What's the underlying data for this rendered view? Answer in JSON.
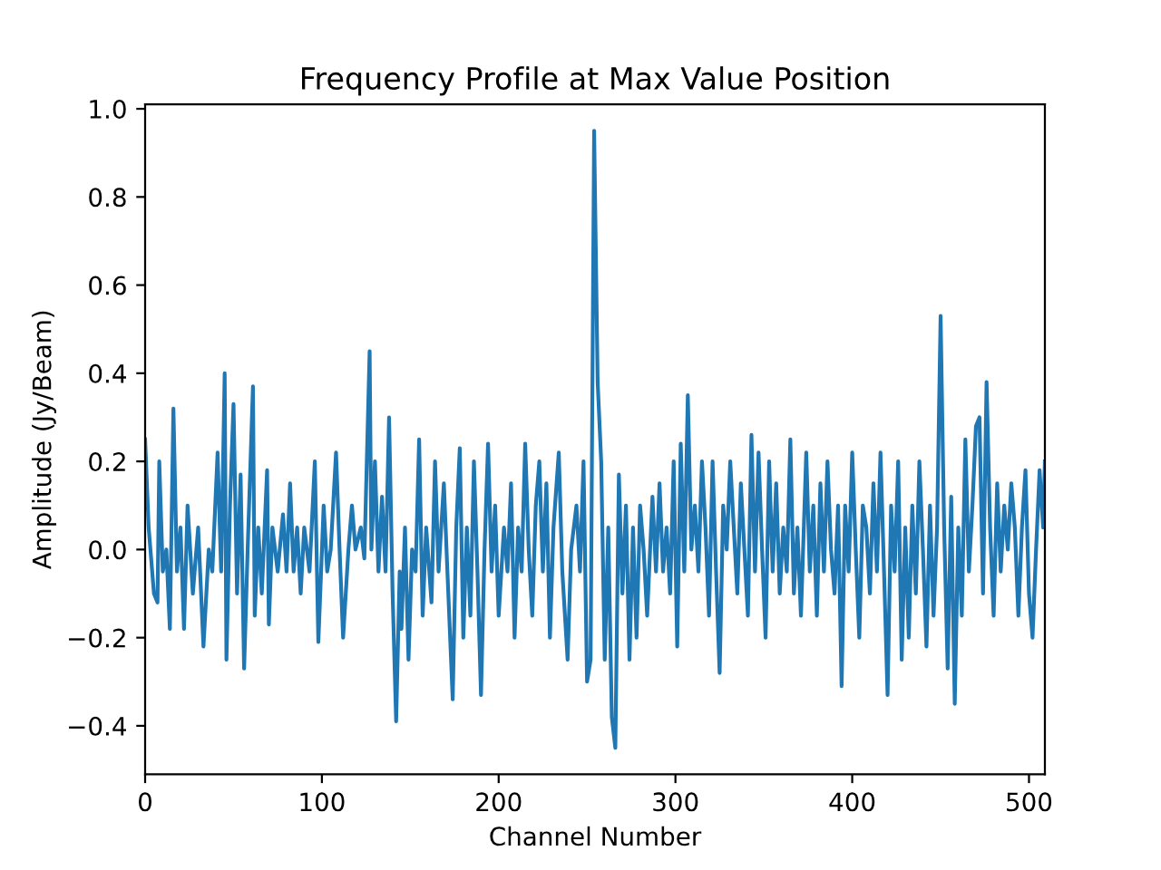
{
  "chart_data": {
    "type": "line",
    "title": "Frequency Profile at Max Value Position",
    "xlabel": "Channel Number",
    "ylabel": "Amplitude (Jy/Beam)",
    "xlim": [
      0,
      509
    ],
    "ylim": [
      -0.51,
      1.01
    ],
    "xticks": [
      0,
      100,
      200,
      300,
      400,
      500
    ],
    "yticks": [
      {
        "value": -0.4,
        "label": "−0.4"
      },
      {
        "value": -0.2,
        "label": "−0.2"
      },
      {
        "value": 0,
        "label": "0.0"
      },
      {
        "value": 0.2,
        "label": "0.2"
      },
      {
        "value": 0.4,
        "label": "0.4"
      },
      {
        "value": 0.6,
        "label": "0.6"
      },
      {
        "value": 0.8,
        "label": "0.8"
      },
      {
        "value": 1.0,
        "label": "1.0"
      }
    ],
    "grid": false,
    "legend": false,
    "series": [
      {
        "color": "#1f77b4",
        "x": [
          0,
          2,
          5,
          7,
          8,
          10,
          12,
          14,
          16,
          18,
          20,
          22,
          24,
          27,
          30,
          33,
          36,
          38,
          41,
          43,
          45,
          46,
          48,
          50,
          52,
          54,
          56,
          58,
          61,
          62,
          64,
          66,
          69,
          70,
          72,
          75,
          78,
          80,
          82,
          84,
          86,
          88,
          90,
          93,
          96,
          98,
          101,
          103,
          105,
          108,
          110,
          112,
          115,
          117,
          119,
          122,
          124,
          127,
          128,
          130,
          132,
          134,
          136,
          138,
          140,
          142,
          144,
          145,
          147,
          149,
          151,
          153,
          155,
          157,
          159,
          162,
          164,
          166,
          169,
          171,
          174,
          176,
          178,
          180,
          182,
          184,
          186,
          188,
          190,
          192,
          194,
          196,
          198,
          200,
          203,
          205,
          207,
          209,
          211,
          213,
          215,
          217,
          219,
          221,
          223,
          225,
          227,
          229,
          231,
          234,
          236,
          239,
          241,
          244,
          246,
          248,
          250,
          252,
          254,
          256,
          258,
          260,
          262,
          264,
          266,
          268,
          270,
          272,
          274,
          276,
          278,
          280,
          282,
          284,
          287,
          289,
          291,
          293,
          295,
          297,
          299,
          301,
          303,
          305,
          307,
          309,
          311,
          313,
          315,
          317,
          319,
          321,
          323,
          325,
          327,
          329,
          331,
          333,
          335,
          337,
          339,
          341,
          343,
          345,
          347,
          349,
          351,
          353,
          355,
          357,
          359,
          361,
          363,
          365,
          367,
          369,
          371,
          374,
          376,
          378,
          380,
          382,
          384,
          386,
          388,
          390,
          392,
          394,
          396,
          398,
          400,
          402,
          404,
          406,
          408,
          410,
          412,
          414,
          416,
          418,
          420,
          422,
          424,
          426,
          428,
          430,
          432,
          434,
          436,
          438,
          440,
          442,
          444,
          446,
          448,
          450,
          452,
          454,
          456,
          458,
          460,
          462,
          464,
          466,
          468,
          470,
          472,
          474,
          476,
          478,
          480,
          482,
          484,
          486,
          488,
          490,
          492,
          494,
          496,
          498,
          500,
          502,
          504,
          506,
          508,
          509
        ],
        "values": [
          0.25,
          0.05,
          -0.1,
          -0.12,
          0.2,
          -0.05,
          0.0,
          -0.18,
          0.32,
          -0.05,
          0.05,
          -0.18,
          0.1,
          -0.1,
          0.05,
          -0.22,
          0.0,
          -0.05,
          0.22,
          -0.05,
          0.4,
          -0.25,
          0.1,
          0.33,
          -0.1,
          0.17,
          -0.27,
          0.0,
          0.37,
          -0.15,
          0.05,
          -0.1,
          0.18,
          -0.17,
          0.05,
          -0.05,
          0.08,
          -0.05,
          0.15,
          -0.05,
          0.05,
          -0.1,
          0.05,
          -0.05,
          0.2,
          -0.21,
          0.1,
          -0.05,
          0.0,
          0.22,
          0.0,
          -0.2,
          0.0,
          0.1,
          0.0,
          0.05,
          -0.02,
          0.45,
          0.0,
          0.2,
          -0.05,
          0.12,
          -0.05,
          0.3,
          -0.1,
          -0.39,
          -0.05,
          -0.18,
          0.05,
          -0.25,
          0.0,
          -0.05,
          0.25,
          -0.15,
          0.05,
          -0.12,
          0.2,
          -0.05,
          0.15,
          -0.05,
          -0.34,
          0.05,
          0.23,
          -0.2,
          0.05,
          -0.15,
          0.2,
          -0.05,
          -0.33,
          0.0,
          0.24,
          -0.05,
          0.1,
          -0.15,
          0.05,
          -0.05,
          0.15,
          -0.2,
          0.05,
          -0.05,
          0.24,
          0.0,
          -0.15,
          0.1,
          0.2,
          -0.05,
          0.15,
          -0.2,
          0.05,
          0.22,
          -0.05,
          -0.25,
          0.0,
          0.1,
          -0.05,
          0.2,
          -0.3,
          -0.25,
          0.95,
          0.38,
          0.2,
          -0.25,
          0.05,
          -0.38,
          -0.45,
          0.17,
          -0.1,
          0.1,
          -0.25,
          0.05,
          -0.2,
          0.1,
          0.0,
          -0.15,
          0.12,
          -0.05,
          0.15,
          -0.05,
          0.05,
          -0.1,
          0.2,
          -0.22,
          0.24,
          -0.05,
          0.35,
          0.0,
          0.1,
          -0.05,
          0.2,
          0.05,
          -0.15,
          0.2,
          -0.05,
          -0.28,
          0.1,
          0.0,
          0.2,
          0.05,
          -0.1,
          0.15,
          0.0,
          -0.15,
          0.26,
          -0.05,
          0.22,
          0.0,
          -0.2,
          0.2,
          -0.05,
          0.15,
          -0.1,
          0.05,
          -0.05,
          0.25,
          -0.1,
          0.05,
          -0.15,
          0.22,
          -0.05,
          0.1,
          -0.15,
          0.15,
          -0.05,
          0.2,
          0.0,
          -0.1,
          0.1,
          -0.31,
          0.1,
          -0.05,
          0.22,
          0.0,
          -0.2,
          0.1,
          0.05,
          -0.1,
          0.15,
          -0.05,
          0.22,
          -0.05,
          -0.33,
          0.1,
          -0.05,
          0.2,
          -0.25,
          0.05,
          -0.2,
          0.1,
          -0.1,
          0.2,
          0.0,
          -0.22,
          0.1,
          -0.15,
          0.05,
          0.53,
          0.05,
          -0.27,
          0.12,
          -0.35,
          0.05,
          -0.15,
          0.25,
          -0.05,
          0.1,
          0.28,
          0.3,
          -0.1,
          0.38,
          0.05,
          -0.15,
          0.15,
          -0.05,
          0.1,
          0.0,
          0.15,
          0.05,
          -0.15,
          0.05,
          0.18,
          -0.1,
          -0.2,
          0.0,
          0.18,
          0.05,
          0.2
        ]
      }
    ]
  }
}
